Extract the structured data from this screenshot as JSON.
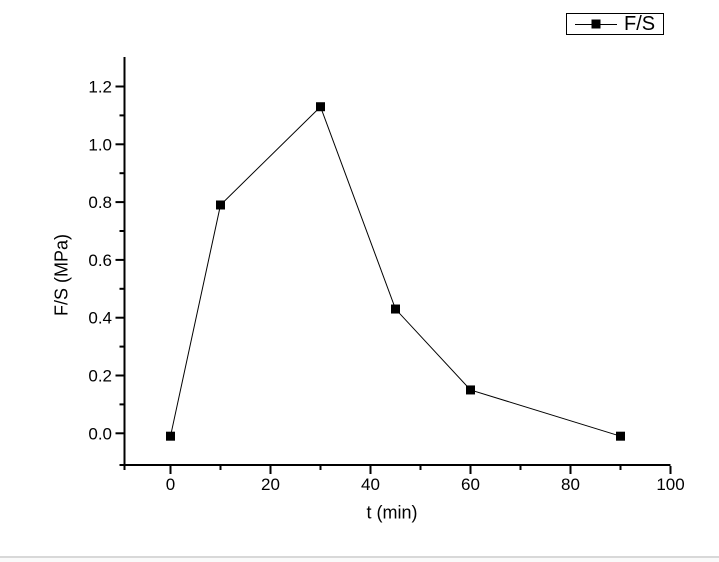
{
  "page": {
    "background": "#ffffff",
    "footer_separator_color": "#d8d8d8",
    "footer_background": "#fafafa"
  },
  "legend": {
    "label": "F/S",
    "marker_icon": "filled-square-with-line",
    "border_color": "#000000"
  },
  "axes": {
    "x_title": "t (min)",
    "y_title": "F/S (MPa)"
  },
  "chart_data": {
    "type": "line",
    "title": "",
    "xlabel": "t (min)",
    "ylabel": "F/S (MPa)",
    "xlim": [
      -10,
      100
    ],
    "ylim": [
      -0.11,
      1.3
    ],
    "grid": false,
    "legend_position": "top-right",
    "series": [
      {
        "name": "F/S",
        "x": [
          0,
          10,
          30,
          45,
          60,
          90
        ],
        "y": [
          -0.01,
          0.79,
          1.13,
          0.43,
          0.15,
          -0.01
        ],
        "color": "#000000",
        "marker": "filled-square",
        "marker_size": 9,
        "line_style": "solid"
      }
    ],
    "x_major_ticks": [
      0,
      20,
      40,
      60,
      80,
      100
    ],
    "x_minor_ticks": [
      10,
      30,
      50,
      70,
      90
    ],
    "x_tick_labels": [
      "0",
      "20",
      "40",
      "60",
      "80",
      "100"
    ],
    "y_major_ticks": [
      0.0,
      0.2,
      0.4,
      0.6,
      0.8,
      1.0,
      1.2
    ],
    "y_minor_ticks": [
      0.1,
      0.3,
      0.5,
      0.7,
      0.9,
      1.1
    ],
    "y_tick_labels": [
      "0.0",
      "0.2",
      "0.4",
      "0.6",
      "0.8",
      "1.0",
      "1.2"
    ],
    "axis_color": "#000000",
    "tick_label_color": "#000000"
  }
}
